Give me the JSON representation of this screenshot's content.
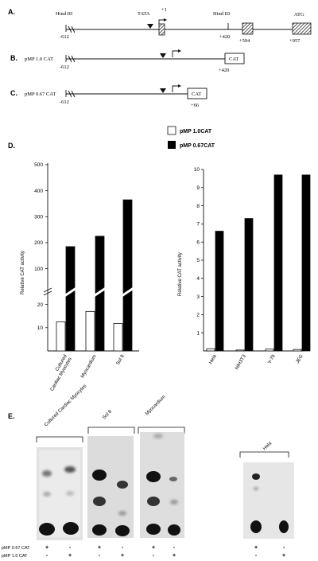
{
  "panels": {
    "A": {
      "letter": "A.",
      "hind3_left": "Hind III",
      "tata": "TATA",
      "plus1": "+1",
      "hind3_mid": "Hind III",
      "atg": "ATG",
      "pos_m612": "-612",
      "pos_420": "+420",
      "pos_594": "+594",
      "pos_957": "+957"
    },
    "B": {
      "letter": "B.",
      "construct": "pMP 1.0 CAT",
      "pos_m612": "-612",
      "box": "CAT",
      "pos_end": "+420"
    },
    "C": {
      "letter": "C.",
      "construct": "pMP 0.67 CAT",
      "pos_m612": "-612",
      "box": "CAT",
      "pos_end": "+66"
    },
    "D": {
      "letter": "D."
    },
    "E": {
      "letter": "E.",
      "groups": [
        "Cultured Cardiac Myocytes",
        "Sol 8",
        "Myocardium",
        "Hela"
      ],
      "rows": [
        {
          "label": "pMP 0.67 CAT",
          "signs": [
            "+",
            "-",
            "+",
            "-",
            "+",
            "-",
            "+",
            "-"
          ]
        },
        {
          "label": "pMP 1.0 CAT",
          "signs": [
            "-",
            "+",
            "-",
            "+",
            "-",
            "+",
            "-",
            "+"
          ]
        }
      ]
    }
  },
  "legend": [
    "pMP 1.0CAT",
    "pMP 0.67CAT"
  ],
  "colors": {
    "series1": "#ffffff",
    "series2": "#000000"
  },
  "chart_data": [
    {
      "type": "bar",
      "ylabel": "Relative CAT activity",
      "ylim": [
        0,
        500
      ],
      "broken_axis": {
        "lower": [
          0,
          25
        ],
        "upper": [
          50,
          500
        ]
      },
      "yticks": [
        "10",
        "20",
        "100",
        "200",
        "300",
        "400",
        "500"
      ],
      "categories": [
        "Cultured Cardiac Myocytes",
        "Myocardium",
        "Sol 8"
      ],
      "series": [
        {
          "name": "pMP 1.0CAT",
          "values": [
            12.5,
            17,
            11.8
          ]
        },
        {
          "name": "pMP 0.67CAT",
          "values": [
            185,
            225,
            365
          ]
        }
      ]
    },
    {
      "type": "bar",
      "ylabel": "Relative CAT activity",
      "ylim": [
        0,
        10
      ],
      "yticks": [
        "1",
        "2",
        "3",
        "4",
        "5",
        "6",
        "7",
        "8",
        "9",
        "10"
      ],
      "categories": [
        "Hela",
        "NIH3T3",
        "Y-79",
        "JEG"
      ],
      "series": [
        {
          "name": "pMP 1.0CAT",
          "values": [
            0.12,
            0.05,
            0.1,
            0.08
          ]
        },
        {
          "name": "pMP 0.67CAT",
          "values": [
            6.6,
            7.3,
            9.7,
            9.7
          ]
        }
      ]
    }
  ]
}
